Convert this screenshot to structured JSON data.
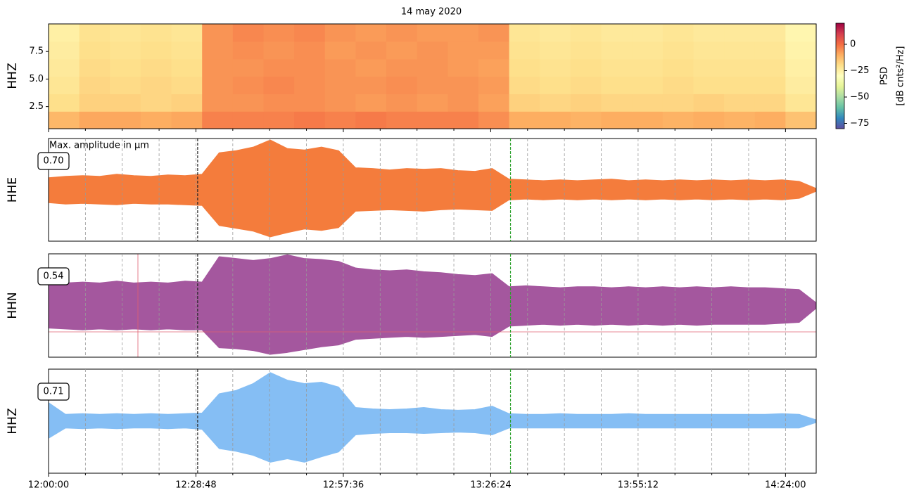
{
  "chart_data": {
    "type": "seismogram",
    "title": "14 may 2020",
    "xlim": [
      0,
      9000
    ],
    "xticks": [
      {
        "value": 0,
        "label": "12:00:00"
      },
      {
        "value": 1728,
        "label": "12:28:48"
      },
      {
        "value": 3456,
        "label": "12:57:36"
      },
      {
        "value": 5184,
        "label": "13:26:24"
      },
      {
        "value": 6912,
        "label": "13:55:12"
      },
      {
        "value": 8640,
        "label": "14:24:00"
      }
    ],
    "xminorticks": [
      432,
      864,
      1296,
      2160,
      2592,
      3024,
      3888,
      4320,
      4752,
      5616,
      6048,
      6480,
      7344,
      7776,
      8208
    ],
    "grid": true,
    "markers": [
      {
        "x": 1748,
        "color": "#222222"
      },
      {
        "x": 5416,
        "color": "#2ca02c"
      }
    ],
    "spectrogram": {
      "channel": "HHZ",
      "channel_color": "#85bef4",
      "ylim": [
        0.5,
        10
      ],
      "yticks": [
        {
          "value": 2.5,
          "label": "2.5"
        },
        {
          "value": 5,
          "label": "5.0"
        },
        {
          "value": 7.5,
          "label": "7.5"
        }
      ],
      "time_bins": [
        0,
        360,
        720,
        1080,
        1440,
        1800,
        2160,
        2520,
        2880,
        3240,
        3600,
        3960,
        4320,
        4680,
        5040,
        5400,
        5760,
        6120,
        6480,
        6840,
        7200,
        7560,
        7920,
        8280,
        8640,
        9000
      ],
      "freq_bins": [
        0.5,
        2.08,
        3.67,
        5.25,
        6.83,
        8.42,
        10
      ],
      "psd": [
        [
          -12,
          -9,
          -9,
          -10,
          -9,
          -3,
          -3,
          -3,
          -2,
          -3,
          -2,
          -3,
          -3,
          -3,
          -5,
          -10,
          -10,
          -11,
          -10,
          -10,
          -11,
          -10,
          -11,
          -10,
          -14
        ],
        [
          -20,
          -17,
          -17,
          -18,
          -17,
          -6,
          -6,
          -5,
          -5,
          -6,
          -7,
          -6,
          -7,
          -6,
          -8,
          -17,
          -18,
          -17,
          -18,
          -18,
          -18,
          -17,
          -18,
          -18,
          -22
        ],
        [
          -22,
          -18,
          -19,
          -18,
          -19,
          -6,
          -5,
          -4,
          -5,
          -6,
          -6,
          -5,
          -6,
          -6,
          -7,
          -19,
          -20,
          -19,
          -20,
          -20,
          -19,
          -20,
          -20,
          -20,
          -24
        ],
        [
          -23,
          -19,
          -20,
          -19,
          -20,
          -6,
          -6,
          -5,
          -5,
          -6,
          -7,
          -6,
          -6,
          -7,
          -8,
          -20,
          -21,
          -20,
          -21,
          -21,
          -20,
          -21,
          -21,
          -21,
          -25
        ],
        [
          -24,
          -20,
          -21,
          -20,
          -21,
          -6,
          -5,
          -6,
          -5,
          -7,
          -6,
          -7,
          -6,
          -7,
          -7,
          -21,
          -22,
          -21,
          -22,
          -22,
          -21,
          -22,
          -22,
          -22,
          -26
        ],
        [
          -25,
          -21,
          -22,
          -21,
          -22,
          -6,
          -4,
          -5,
          -4,
          -6,
          -7,
          -6,
          -7,
          -7,
          -6,
          -22,
          -23,
          -22,
          -23,
          -23,
          -22,
          -23,
          -23,
          -23,
          -27
        ]
      ],
      "colorscale": [
        "#5e4fa2",
        "#3288bd",
        "#66c2a5",
        "#abdda4",
        "#e6f598",
        "#ffffbf",
        "#fee08b",
        "#fdae61",
        "#f46d43",
        "#d53e4f",
        "#9e0142"
      ],
      "colorbar": {
        "label": [
          "PSD",
          "[dB cnts²/Hz]"
        ],
        "lim": [
          -80,
          20
        ],
        "ticks": [
          0,
          {
            "value": -25,
            "label": "−25"
          },
          {
            "value": -50,
            "label": "−50"
          },
          {
            "value": -75,
            "label": "−75"
          }
        ]
      }
    },
    "amplitude_note": "Max. amplitude in μm",
    "trace_x": [
      0,
      200,
      400,
      600,
      800,
      1000,
      1200,
      1400,
      1600,
      1800,
      2000,
      2200,
      2400,
      2600,
      2800,
      3000,
      3200,
      3400,
      3600,
      3800,
      4000,
      4200,
      4400,
      4600,
      4800,
      5000,
      5200,
      5400,
      5600,
      5800,
      6000,
      6200,
      6400,
      6600,
      6800,
      7000,
      7200,
      7400,
      7600,
      7800,
      8000,
      8200,
      8400,
      8600,
      8800,
      9000
    ],
    "traces": [
      {
        "name": "HHE",
        "color": "#f47c3c",
        "max_amplitude": {
          "value": 0.7,
          "label": "0.70"
        },
        "ylim": [
          -0.72,
          0.72
        ],
        "upper": [
          0.17,
          0.19,
          0.2,
          0.19,
          0.22,
          0.2,
          0.19,
          0.21,
          0.2,
          0.22,
          0.52,
          0.55,
          0.6,
          0.7,
          0.58,
          0.56,
          0.6,
          0.55,
          0.31,
          0.3,
          0.28,
          0.3,
          0.29,
          0.3,
          0.27,
          0.26,
          0.3,
          0.15,
          0.14,
          0.13,
          0.14,
          0.13,
          0.14,
          0.15,
          0.13,
          0.14,
          0.13,
          0.14,
          0.13,
          0.14,
          0.13,
          0.14,
          0.13,
          0.14,
          0.12,
          0.02
        ],
        "lower": [
          -0.18,
          -0.2,
          -0.19,
          -0.2,
          -0.21,
          -0.19,
          -0.2,
          -0.2,
          -0.21,
          -0.22,
          -0.5,
          -0.54,
          -0.58,
          -0.66,
          -0.6,
          -0.55,
          -0.57,
          -0.53,
          -0.3,
          -0.29,
          -0.28,
          -0.29,
          -0.3,
          -0.28,
          -0.27,
          -0.28,
          -0.29,
          -0.14,
          -0.13,
          -0.14,
          -0.13,
          -0.14,
          -0.13,
          -0.14,
          -0.13,
          -0.14,
          -0.13,
          -0.14,
          -0.13,
          -0.14,
          -0.13,
          -0.14,
          -0.13,
          -0.14,
          -0.12,
          -0.02
        ]
      },
      {
        "name": "HHN",
        "color": "#a4579e",
        "max_amplitude": {
          "value": 0.54,
          "label": "0.54"
        },
        "ylim": [
          -0.55,
          0.55
        ],
        "upper": [
          0.22,
          0.24,
          0.25,
          0.24,
          0.26,
          0.24,
          0.25,
          0.24,
          0.26,
          0.25,
          0.52,
          0.5,
          0.48,
          0.5,
          0.54,
          0.5,
          0.49,
          0.47,
          0.4,
          0.38,
          0.37,
          0.38,
          0.36,
          0.35,
          0.33,
          0.32,
          0.34,
          0.2,
          0.21,
          0.2,
          0.19,
          0.2,
          0.2,
          0.19,
          0.2,
          0.19,
          0.2,
          0.19,
          0.2,
          0.19,
          0.2,
          0.19,
          0.19,
          0.18,
          0.17,
          0.03
        ],
        "lower": [
          -0.24,
          -0.25,
          -0.26,
          -0.25,
          -0.26,
          -0.25,
          -0.26,
          -0.25,
          -0.26,
          -0.26,
          -0.45,
          -0.46,
          -0.48,
          -0.52,
          -0.5,
          -0.47,
          -0.44,
          -0.42,
          -0.36,
          -0.35,
          -0.34,
          -0.33,
          -0.34,
          -0.33,
          -0.32,
          -0.31,
          -0.33,
          -0.22,
          -0.21,
          -0.2,
          -0.21,
          -0.2,
          -0.21,
          -0.2,
          -0.21,
          -0.2,
          -0.21,
          -0.2,
          -0.21,
          -0.2,
          -0.2,
          -0.2,
          -0.2,
          -0.19,
          -0.18,
          -0.03
        ]
      },
      {
        "name": "HHZ",
        "color": "#85bef4",
        "max_amplitude": {
          "value": 0.71,
          "label": "0.71"
        },
        "ylim": [
          -0.76,
          0.76
        ],
        "upper": [
          0.27,
          0.1,
          0.11,
          0.1,
          0.11,
          0.1,
          0.11,
          0.1,
          0.11,
          0.12,
          0.4,
          0.45,
          0.55,
          0.71,
          0.6,
          0.55,
          0.57,
          0.5,
          0.2,
          0.18,
          0.17,
          0.18,
          0.2,
          0.17,
          0.16,
          0.17,
          0.22,
          0.11,
          0.1,
          0.1,
          0.11,
          0.1,
          0.1,
          0.1,
          0.11,
          0.1,
          0.1,
          0.1,
          0.1,
          0.1,
          0.1,
          0.1,
          0.1,
          0.11,
          0.1,
          0.02
        ],
        "lower": [
          -0.25,
          -0.1,
          -0.11,
          -0.1,
          -0.11,
          -0.1,
          -0.1,
          -0.11,
          -0.1,
          -0.12,
          -0.4,
          -0.44,
          -0.5,
          -0.6,
          -0.55,
          -0.6,
          -0.52,
          -0.45,
          -0.2,
          -0.18,
          -0.17,
          -0.17,
          -0.18,
          -0.17,
          -0.16,
          -0.17,
          -0.2,
          -0.1,
          -0.1,
          -0.1,
          -0.1,
          -0.1,
          -0.1,
          -0.1,
          -0.1,
          -0.1,
          -0.1,
          -0.1,
          -0.1,
          -0.1,
          -0.1,
          -0.1,
          -0.1,
          -0.1,
          -0.1,
          -0.02
        ]
      }
    ]
  }
}
